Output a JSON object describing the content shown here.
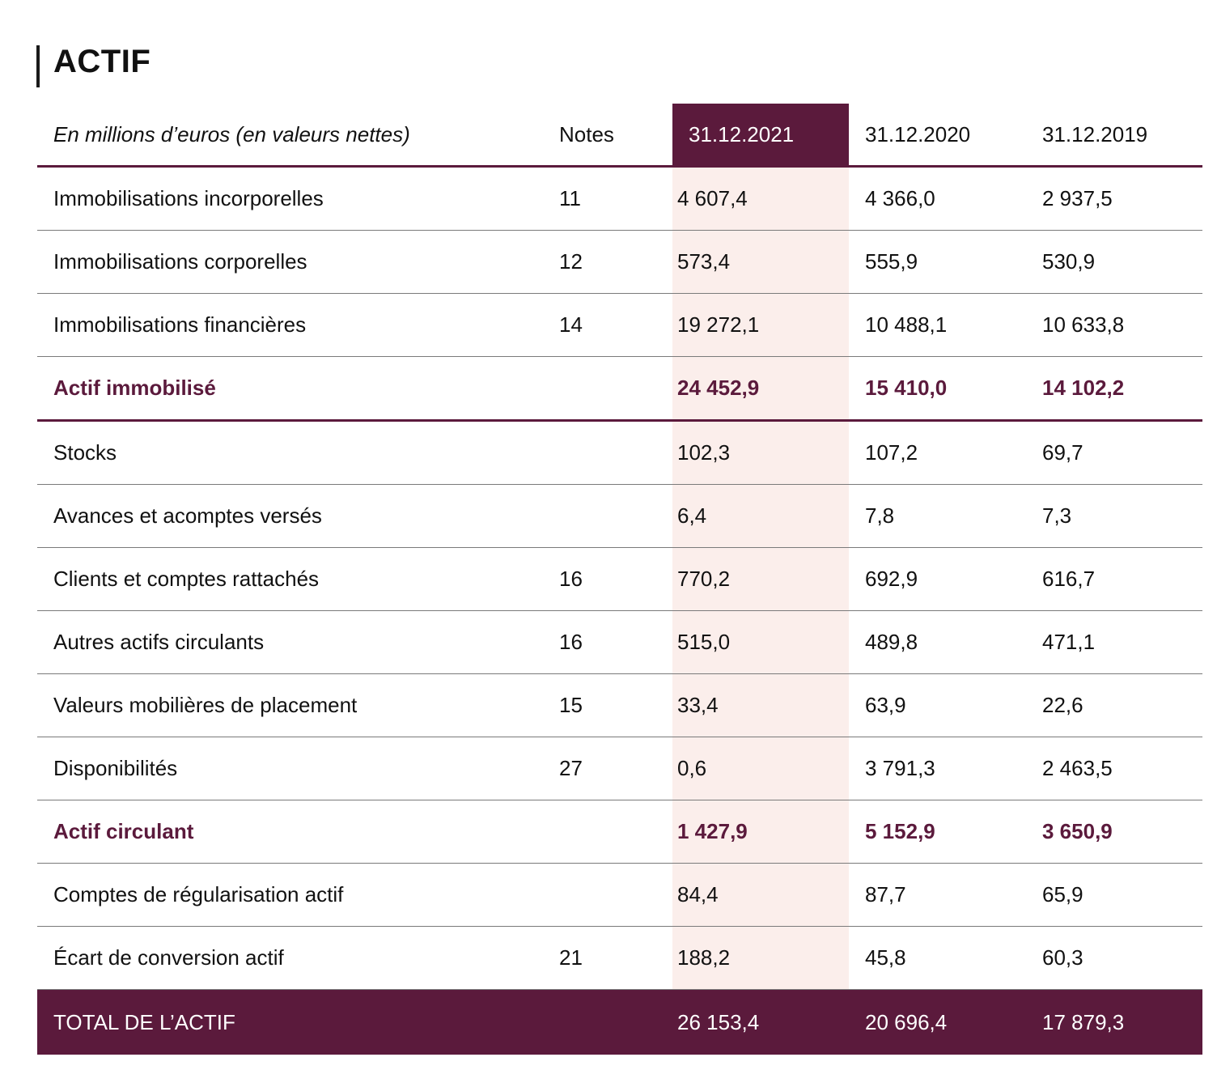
{
  "title": "ACTIF",
  "table": {
    "header": {
      "label": "En millions d’euros (en valeurs nettes)",
      "notes": "Notes",
      "y1": "31.12.2021",
      "y2": "31.12.2020",
      "y3": "31.12.2019"
    },
    "rows": [
      {
        "label": "Immobilisations incorporelles",
        "notes": "11",
        "y1": "4 607,4",
        "y2": "4 366,0",
        "y3": "2 937,5"
      },
      {
        "label": "Immobilisations corporelles",
        "notes": "12",
        "y1": "573,4",
        "y2": "555,9",
        "y3": "530,9"
      },
      {
        "label": "Immobilisations financières",
        "notes": "14",
        "y1": "19 272,1",
        "y2": "10 488,1",
        "y3": "10 633,8"
      },
      {
        "label": "Actif immobilisé",
        "notes": "",
        "y1": "24 452,9",
        "y2": "15 410,0",
        "y3": "14 102,2"
      },
      {
        "label": "Stocks",
        "notes": "",
        "y1": "102,3",
        "y2": "107,2",
        "y3": "69,7"
      },
      {
        "label": "Avances et acomptes versés",
        "notes": "",
        "y1": "6,4",
        "y2": "7,8",
        "y3": "7,3"
      },
      {
        "label": "Clients et comptes rattachés",
        "notes": "16",
        "y1": "770,2",
        "y2": "692,9",
        "y3": "616,7"
      },
      {
        "label": "Autres actifs circulants",
        "notes": "16",
        "y1": "515,0",
        "y2": "489,8",
        "y3": "471,1"
      },
      {
        "label": "Valeurs mobilières de placement",
        "notes": "15",
        "y1": "33,4",
        "y2": "63,9",
        "y3": "22,6"
      },
      {
        "label": "Disponibilités",
        "notes": "27",
        "y1": "0,6",
        "y2": "3 791,3",
        "y3": "2 463,5"
      },
      {
        "label": "Actif circulant",
        "notes": "",
        "y1": "1 427,9",
        "y2": "5 152,9",
        "y3": "3 650,9"
      },
      {
        "label": "Comptes de régularisation actif",
        "notes": "",
        "y1": "84,4",
        "y2": "87,7",
        "y3": "65,9"
      },
      {
        "label": "Écart de conversion actif",
        "notes": "21",
        "y1": "188,2",
        "y2": "45,8",
        "y3": "60,3"
      },
      {
        "label": "TOTAL DE L’ACTIF",
        "notes": "",
        "y1": "26 153,4",
        "y2": "20 696,4",
        "y3": "17 879,3"
      }
    ]
  },
  "colors": {
    "accent": "#5b1a3c",
    "highlight_column": "#fbeeeb",
    "row_divider": "#7a7a7a"
  }
}
